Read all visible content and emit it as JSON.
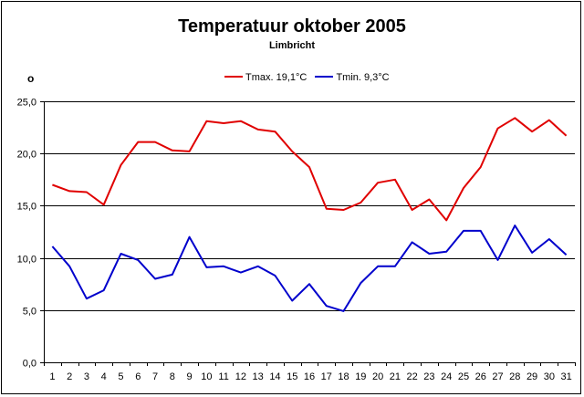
{
  "colors": {
    "tmax": "#e00000",
    "tmin": "#0000cc",
    "grid": "#000000"
  },
  "degree_symbol": "o",
  "chart_data": {
    "type": "line",
    "title": "Temperatuur oktober 2005",
    "subtitle": "Limbricht",
    "xlabel": "",
    "ylabel": "",
    "ylim": [
      0,
      25
    ],
    "ytick_values": [
      0,
      5,
      10,
      15,
      20,
      25
    ],
    "ytick_labels": [
      "0,0",
      "5,0",
      "10,0",
      "15,0",
      "20,0",
      "25,0"
    ],
    "grid": true,
    "legend_position": "top",
    "categories": [
      "1",
      "2",
      "3",
      "4",
      "5",
      "6",
      "7",
      "8",
      "9",
      "10",
      "11",
      "12",
      "13",
      "14",
      "15",
      "16",
      "17",
      "18",
      "19",
      "20",
      "21",
      "22",
      "23",
      "24",
      "25",
      "26",
      "27",
      "28",
      "29",
      "30",
      "31"
    ],
    "series": [
      {
        "name": "Tmax. 19,1°C",
        "color_key": "tmax",
        "values": [
          17.0,
          16.4,
          16.3,
          15.1,
          18.9,
          21.1,
          21.1,
          20.3,
          20.2,
          23.1,
          22.9,
          23.1,
          22.3,
          22.1,
          20.2,
          18.7,
          14.7,
          14.6,
          15.3,
          17.2,
          17.5,
          14.6,
          15.6,
          13.6,
          16.7,
          18.7,
          22.4,
          23.4,
          22.1,
          23.2,
          21.7
        ]
      },
      {
        "name": "Tmin. 9,3°C",
        "color_key": "tmin",
        "values": [
          11.1,
          9.2,
          6.1,
          6.9,
          10.4,
          9.8,
          8.0,
          8.4,
          12.0,
          9.1,
          9.2,
          8.6,
          9.2,
          8.3,
          5.9,
          7.5,
          5.4,
          4.9,
          7.6,
          9.2,
          9.2,
          11.5,
          10.4,
          10.6,
          12.6,
          12.6,
          9.8,
          13.1,
          10.5,
          11.8,
          10.3
        ]
      }
    ]
  }
}
